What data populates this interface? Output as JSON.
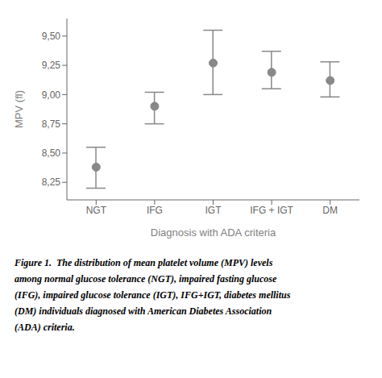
{
  "chart_data": {
    "type": "errorbar",
    "categories": [
      "NGT",
      "IFG",
      "IGT",
      "IFG + IGT",
      "DM"
    ],
    "values": [
      8.38,
      8.9,
      9.27,
      9.19,
      9.12
    ],
    "ci_upper": [
      8.55,
      9.02,
      9.55,
      9.37,
      9.28
    ],
    "ci_lower": [
      8.2,
      8.75,
      9.0,
      9.05,
      8.98
    ],
    "ylabel": "MPV (fl)",
    "xlabel": "Diagnosis with ADA criteria",
    "ylim": [
      8.1,
      9.65
    ],
    "yticks": [
      {
        "value": 8.25,
        "label": "8,25"
      },
      {
        "value": 8.5,
        "label": "8,50"
      },
      {
        "value": 8.75,
        "label": "8,75"
      },
      {
        "value": 9.0,
        "label": "9,00"
      },
      {
        "value": 9.25,
        "label": "9,25"
      },
      {
        "value": 9.5,
        "label": "9,50"
      }
    ],
    "color": "#888888",
    "grid": false,
    "caption": [
      "Figure 1.  The distribution of mean platelet volume (MPV) levels",
      "among normal glucose tolerance (NGT), impaired fasting glucose",
      "(IFG), impaired glucose tolerance (IGT), IFG+IGT, diabetes mellitus",
      "(DM) individuals diagnosed with American Diabetes Association",
      "(ADA) criteria."
    ]
  }
}
